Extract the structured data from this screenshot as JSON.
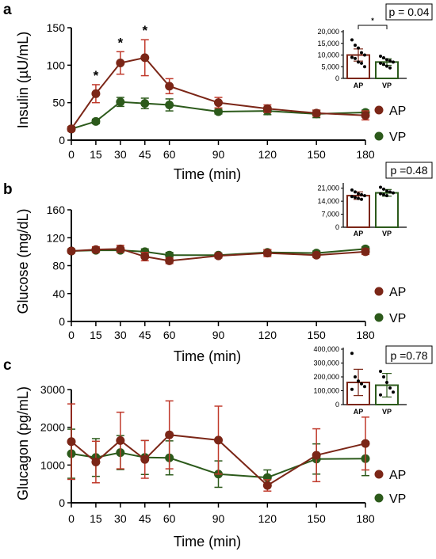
{
  "colors": {
    "AP": "#7b2617",
    "VP": "#2c5a1b",
    "AP_err": "#c0392b"
  },
  "chart_data": [
    {
      "panel": "a",
      "type": "line",
      "xlabel": "Time (min)",
      "ylabel": "Insulin (µU/mL)",
      "x": [
        0,
        15,
        30,
        45,
        60,
        90,
        120,
        150,
        180
      ],
      "xticks": [
        0,
        15,
        30,
        45,
        60,
        90,
        120,
        150,
        180
      ],
      "xlim": [
        0,
        180
      ],
      "ylim": [
        0,
        150
      ],
      "yticks": [
        0,
        50,
        100,
        150
      ],
      "series": [
        {
          "name": "AP",
          "values": [
            15,
            62,
            103,
            110,
            72,
            50,
            42,
            36,
            33
          ],
          "err": [
            3,
            12,
            15,
            24,
            10,
            7,
            5,
            4,
            6
          ]
        },
        {
          "name": "VP",
          "values": [
            15,
            25,
            51,
            49,
            47,
            38,
            39,
            35,
            37
          ],
          "err": [
            3,
            3,
            6,
            7,
            8,
            3,
            5,
            5,
            3
          ]
        }
      ],
      "significance_marks": [
        {
          "x": 15,
          "label": "*"
        },
        {
          "x": 30,
          "label": "*"
        },
        {
          "x": 45,
          "label": "*"
        }
      ],
      "inset": {
        "type": "bar",
        "categories": [
          "AP",
          "VP"
        ],
        "values": [
          10000,
          7000
        ],
        "err": [
          2600,
          1400
        ],
        "ylim": [
          0,
          20000
        ],
        "yticks": [
          0,
          5000,
          10000,
          15000,
          20000
        ],
        "yticklabels": [
          "0",
          "5,000",
          "10,000",
          "15,000",
          "20,000"
        ],
        "points": [
          [
            16500,
            14200,
            13000,
            11000,
            10000,
            9000,
            8500,
            7000,
            6500,
            5000
          ],
          [
            9500,
            8800,
            8000,
            7500,
            7000,
            6500,
            6000,
            5200,
            4500
          ]
        ],
        "bracket": "*",
        "pvalue": "p = 0.04"
      }
    },
    {
      "panel": "b",
      "type": "line",
      "xlabel": "Time (min)",
      "ylabel": "Glucose (mg/dL)",
      "x": [
        0,
        15,
        30,
        45,
        60,
        90,
        120,
        150,
        180
      ],
      "xticks": [
        0,
        15,
        30,
        45,
        60,
        90,
        120,
        150,
        180
      ],
      "xlim": [
        0,
        180
      ],
      "ylim": [
        0,
        160
      ],
      "yticks": [
        0,
        40,
        80,
        120,
        160
      ],
      "series": [
        {
          "name": "AP",
          "values": [
            101,
            103,
            104,
            93,
            87,
            94,
            98,
            95,
            100
          ],
          "err": [
            3,
            4,
            5,
            6,
            4,
            3,
            5,
            3,
            4
          ]
        },
        {
          "name": "VP",
          "values": [
            101,
            102,
            102,
            100,
            95,
            95,
            99,
            98,
            104
          ],
          "err": [
            3,
            3,
            3,
            4,
            4,
            3,
            4,
            3,
            3
          ]
        }
      ],
      "inset": {
        "type": "bar",
        "categories": [
          "AP",
          "VP"
        ],
        "values": [
          17000,
          18500
        ],
        "err": [
          2000,
          1800
        ],
        "ylim": [
          0,
          23000
        ],
        "yticks": [
          0,
          7000,
          14000,
          21000
        ],
        "yticklabels": [
          "0",
          "7,000",
          "14,000",
          "21,000"
        ],
        "points": [
          [
            20000,
            19000,
            18000,
            17500,
            17000,
            16500,
            16000,
            15500,
            15000
          ],
          [
            21500,
            20500,
            19500,
            19000,
            18500,
            18000,
            17500,
            17000
          ]
        ],
        "pvalue": "p =0.48"
      }
    },
    {
      "panel": "c",
      "type": "line",
      "xlabel": "Time (min)",
      "ylabel": "Glucagon  (pg/mL)",
      "x": [
        0,
        15,
        30,
        45,
        60,
        90,
        120,
        150,
        180
      ],
      "xticks": [
        0,
        15,
        30,
        45,
        60,
        90,
        120,
        150,
        180
      ],
      "xlim": [
        0,
        180
      ],
      "ylim": [
        0,
        3000
      ],
      "yticks": [
        0,
        1000,
        2000,
        3000
      ],
      "series": [
        {
          "name": "AP",
          "values": [
            1620,
            1080,
            1650,
            1150,
            1800,
            1660,
            460,
            1260,
            1570
          ],
          "err": [
            1000,
            550,
            750,
            500,
            900,
            900,
            150,
            700,
            700
          ]
        },
        {
          "name": "VP",
          "values": [
            1300,
            1200,
            1330,
            1200,
            1190,
            760,
            670,
            1160,
            1170
          ],
          "err": [
            650,
            500,
            450,
            450,
            450,
            350,
            200,
            400,
            450
          ]
        }
      ],
      "inset": {
        "type": "bar",
        "categories": [
          "AP",
          "VP"
        ],
        "values": [
          160000,
          140000
        ],
        "err": [
          95000,
          85000
        ],
        "ylim": [
          0,
          400000
        ],
        "yticks": [
          0,
          100000,
          200000,
          300000,
          400000
        ],
        "yticklabels": [
          "0",
          "100,000",
          "200,000",
          "300,000",
          "400,000"
        ],
        "points": [
          [
            370000,
            200000,
            170000,
            150000,
            130000,
            110000
          ],
          [
            240000,
            200000,
            160000,
            120000,
            90000,
            70000
          ]
        ],
        "pvalue": "p =0.78"
      }
    }
  ]
}
